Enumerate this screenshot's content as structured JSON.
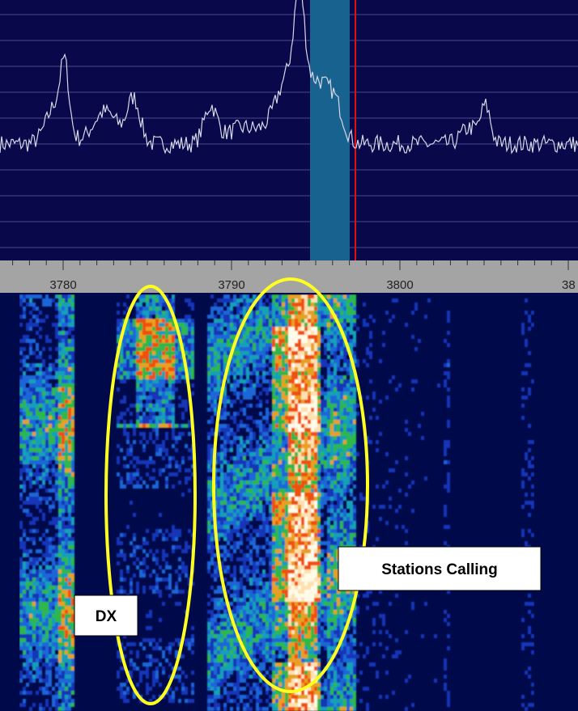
{
  "frequency_axis": {
    "labels": [
      "3780",
      "3790",
      "3800",
      "38"
    ]
  },
  "annotations": {
    "dx": "DX",
    "stations": "Stations Calling"
  }
}
